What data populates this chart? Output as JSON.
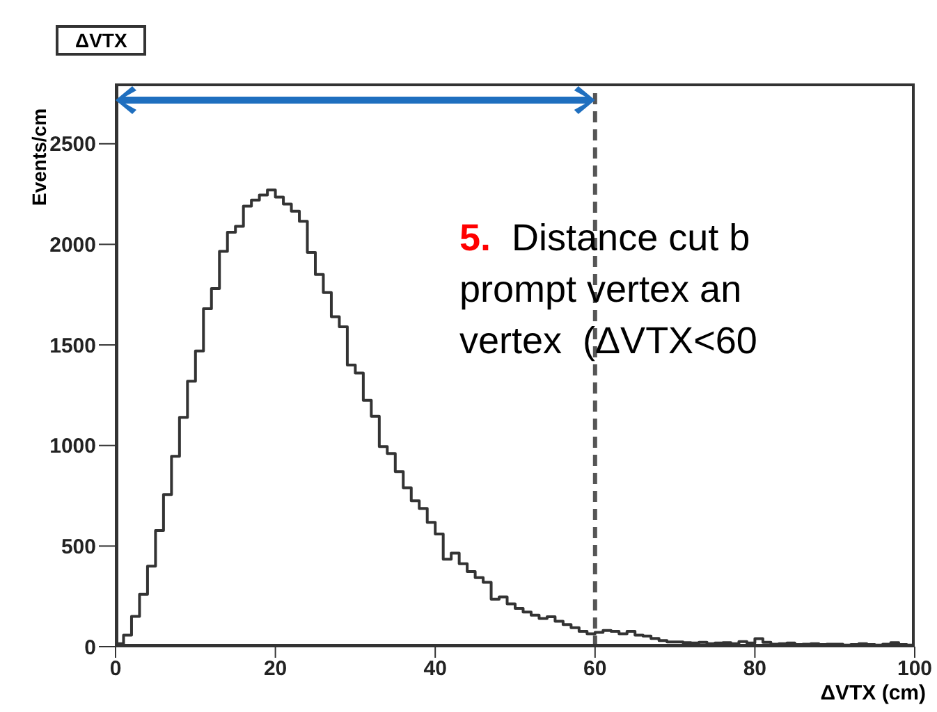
{
  "chart_data": {
    "type": "histogram",
    "title": "ΔVTX",
    "xlabel": "ΔVTX (cm)",
    "ylabel": "Events/cm",
    "bins": [
      0,
      1,
      2,
      3,
      4,
      5,
      6,
      7,
      8,
      9,
      10,
      11,
      12,
      13,
      14,
      15,
      16,
      17,
      18,
      19,
      20,
      21,
      22,
      23,
      24,
      25,
      26,
      27,
      28,
      29,
      30,
      31,
      32,
      33,
      34,
      35,
      36,
      37,
      38,
      39,
      40,
      41,
      42,
      43,
      44,
      45,
      46,
      47,
      48,
      49,
      50,
      51,
      52,
      53,
      54,
      55,
      56,
      57,
      58,
      59,
      60,
      61,
      62,
      63,
      64,
      65,
      66,
      67,
      68,
      69,
      70,
      71,
      72,
      73,
      74,
      75,
      76,
      77,
      78,
      79,
      80,
      81,
      82,
      83,
      84,
      85,
      86,
      87,
      88,
      89,
      90,
      91,
      92,
      93,
      94,
      95,
      96,
      97,
      98,
      99,
      100
    ],
    "values": [
      15,
      57,
      150,
      260,
      400,
      577,
      756,
      946,
      1140,
      1320,
      1470,
      1680,
      1780,
      1965,
      2060,
      2090,
      2190,
      2220,
      2245,
      2270,
      2235,
      2200,
      2165,
      2115,
      1960,
      1850,
      1760,
      1640,
      1590,
      1400,
      1360,
      1225,
      1145,
      995,
      960,
      870,
      790,
      725,
      687,
      618,
      560,
      435,
      465,
      412,
      373,
      343,
      320,
      236,
      247,
      213,
      190,
      172,
      156,
      140,
      149,
      126,
      110,
      94,
      76,
      64,
      71,
      80,
      76,
      64,
      76,
      57,
      53,
      41,
      30,
      23,
      23,
      20,
      18,
      22,
      15,
      18,
      20,
      15,
      25,
      18,
      40,
      22,
      12,
      15,
      18,
      10,
      12,
      15,
      10,
      12,
      12,
      8,
      10,
      15,
      10,
      8,
      12,
      20,
      10,
      8
    ],
    "color": "#333333",
    "xlim": [
      0,
      100
    ],
    "xticks": [
      0,
      20,
      40,
      60,
      80,
      100
    ],
    "ylim": [
      0,
      2800
    ],
    "yticks": [
      0,
      500,
      1000,
      1500,
      2000,
      2500
    ],
    "ref_lines": [
      {
        "axis": "x",
        "value": 60,
        "color": "#555555",
        "line_style": "dashed"
      }
    ],
    "annotations": [
      "5.",
      "Distance cut b",
      "prompt vertex an",
      "vertex  (ΔVTX<60"
    ]
  }
}
